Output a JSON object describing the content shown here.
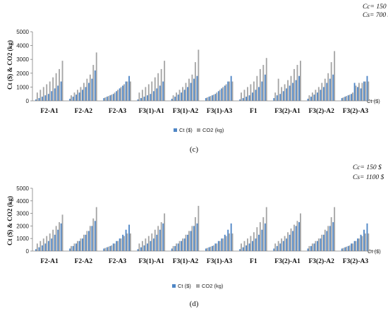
{
  "colors": {
    "ct": "#4f86c6",
    "co2": "#a6a6a6",
    "axis": "#808080",
    "grid": "#d9d9d9"
  },
  "chart_data": [
    {
      "type": "bar",
      "panel_label": "(c)",
      "cost_lines": [
        "Cc= 150 $",
        "Cs= 700 $"
      ],
      "ylabel": "Ct ($) & CO2 (kg)",
      "xlabel": "Ct ($)",
      "ylim": [
        0,
        5000
      ],
      "yticks": [
        "0",
        "1000",
        "2000",
        "3000",
        "4000",
        "5000"
      ],
      "legend": [
        "Ct ($)",
        "CO2 (kg)"
      ],
      "grid": false,
      "groups": [
        {
          "label": "F2-A1",
          "ct": [
            100,
            200,
            300,
            400,
            500,
            700,
            900,
            1100,
            1400
          ],
          "co2": [
            600,
            800,
            1000,
            1200,
            1400,
            1700,
            2000,
            2300,
            2900
          ]
        },
        {
          "label": "F2-A2",
          "ct": [
            150,
            300,
            450,
            600,
            800,
            1000,
            1300,
            1600,
            2200
          ],
          "co2": [
            400,
            600,
            800,
            1000,
            1300,
            1600,
            1900,
            2600,
            3500
          ]
        },
        {
          "label": "F2-A3",
          "ct": [
            200,
            300,
            400,
            500,
            700,
            900,
            1100,
            1400,
            1800
          ],
          "co2": [
            250,
            350,
            450,
            600,
            800,
            1000,
            1200,
            1400,
            1400
          ]
        },
        {
          "label": "F3(1)-A1",
          "ct": [
            100,
            200,
            300,
            400,
            500,
            700,
            900,
            1100,
            1400
          ],
          "co2": [
            600,
            800,
            1000,
            1200,
            1400,
            1700,
            2000,
            2300,
            2900
          ]
        },
        {
          "label": "F3(1)-A2",
          "ct": [
            150,
            300,
            450,
            600,
            800,
            1000,
            1300,
            1600,
            1800
          ],
          "co2": [
            400,
            600,
            800,
            1000,
            1300,
            1600,
            1900,
            2800,
            3700
          ]
        },
        {
          "label": "F3(1)-A3",
          "ct": [
            200,
            300,
            400,
            500,
            700,
            900,
            1100,
            1400,
            1800
          ],
          "co2": [
            250,
            350,
            450,
            600,
            800,
            1000,
            1200,
            1400,
            1400
          ]
        },
        {
          "label": "F1",
          "ct": [
            100,
            200,
            300,
            400,
            600,
            800,
            1000,
            1400,
            1900
          ],
          "co2": [
            600,
            800,
            1000,
            1200,
            1400,
            1800,
            2300,
            2600,
            3100
          ]
        },
        {
          "label": "F3(2)-A1",
          "ct": [
            200,
            400,
            500,
            700,
            900,
            1100,
            1300,
            1500,
            1800
          ],
          "co2": [
            600,
            1600,
            1000,
            1200,
            1500,
            1800,
            2300,
            2600,
            2900
          ]
        },
        {
          "label": "F3(2)-A2",
          "ct": [
            150,
            300,
            450,
            600,
            800,
            1000,
            1300,
            1600,
            1900
          ],
          "co2": [
            400,
            600,
            800,
            1000,
            1300,
            1600,
            2000,
            2800,
            3600
          ]
        },
        {
          "label": "F3(2)-A3",
          "ct": [
            200,
            300,
            400,
            500,
            1300,
            1000,
            900,
            1400,
            1800
          ],
          "co2": [
            250,
            350,
            450,
            600,
            1100,
            1300,
            1300,
            1400,
            1400
          ]
        }
      ]
    },
    {
      "type": "bar",
      "panel_label": "(d)",
      "cost_lines": [
        "Cc= 150 $",
        "Cs= 1100 $"
      ],
      "ylabel": "Ct ($) & CO2 (kg)",
      "xlabel": "Ct ($)",
      "ylim": [
        0,
        5000
      ],
      "yticks": [
        "0",
        "1000",
        "2000",
        "3000",
        "4000",
        "5000"
      ],
      "legend": [
        "Ct ($)",
        "CO2 (kg)"
      ],
      "grid": false,
      "groups": [
        {
          "label": "F2-A1",
          "ct": [
            150,
            300,
            450,
            600,
            800,
            1000,
            1300,
            1700,
            2200
          ],
          "co2": [
            600,
            800,
            1000,
            1200,
            1400,
            1700,
            2000,
            2300,
            2900
          ]
        },
        {
          "label": "F2-A2",
          "ct": [
            200,
            400,
            600,
            800,
            1000,
            1300,
            1600,
            2000,
            2400
          ],
          "co2": [
            400,
            600,
            800,
            1000,
            1300,
            1600,
            2000,
            2600,
            3500
          ]
        },
        {
          "label": "F2-A3",
          "ct": [
            200,
            300,
            400,
            600,
            800,
            1000,
            1300,
            1700,
            2100
          ],
          "co2": [
            250,
            350,
            450,
            600,
            800,
            1000,
            1200,
            1400,
            1400
          ]
        },
        {
          "label": "F3(1)-A1",
          "ct": [
            150,
            300,
            450,
            600,
            800,
            1000,
            1300,
            1700,
            2200
          ],
          "co2": [
            600,
            800,
            1000,
            1200,
            1400,
            1700,
            2000,
            2300,
            3000
          ]
        },
        {
          "label": "F3(1)-A2",
          "ct": [
            200,
            400,
            600,
            800,
            1000,
            1300,
            1600,
            2000,
            2200
          ],
          "co2": [
            400,
            600,
            800,
            1000,
            1300,
            1600,
            2000,
            2700,
            3600
          ]
        },
        {
          "label": "F3(1)-A3",
          "ct": [
            200,
            300,
            400,
            600,
            800,
            1000,
            1300,
            1700,
            2200
          ],
          "co2": [
            250,
            350,
            450,
            600,
            800,
            1000,
            1200,
            1400,
            1400
          ]
        },
        {
          "label": "F1",
          "ct": [
            150,
            300,
            450,
            600,
            800,
            1000,
            1300,
            1700,
            2200
          ],
          "co2": [
            600,
            800,
            1000,
            1200,
            1500,
            1900,
            2300,
            2700,
            3500
          ]
        },
        {
          "label": "F3(2)-A1",
          "ct": [
            200,
            400,
            600,
            800,
            1000,
            1300,
            1600,
            2000,
            2300
          ],
          "co2": [
            600,
            800,
            1000,
            1200,
            1500,
            1800,
            2100,
            2400,
            3000
          ]
        },
        {
          "label": "F3(2)-A2",
          "ct": [
            200,
            400,
            600,
            800,
            1000,
            1300,
            1600,
            2000,
            2300
          ],
          "co2": [
            400,
            600,
            800,
            1000,
            1300,
            1700,
            2000,
            2700,
            3500
          ]
        },
        {
          "label": "F3(2)-A3",
          "ct": [
            200,
            300,
            400,
            600,
            800,
            1000,
            1300,
            1700,
            2200
          ],
          "co2": [
            250,
            350,
            450,
            600,
            800,
            1000,
            1200,
            1400,
            1400
          ]
        }
      ]
    }
  ]
}
